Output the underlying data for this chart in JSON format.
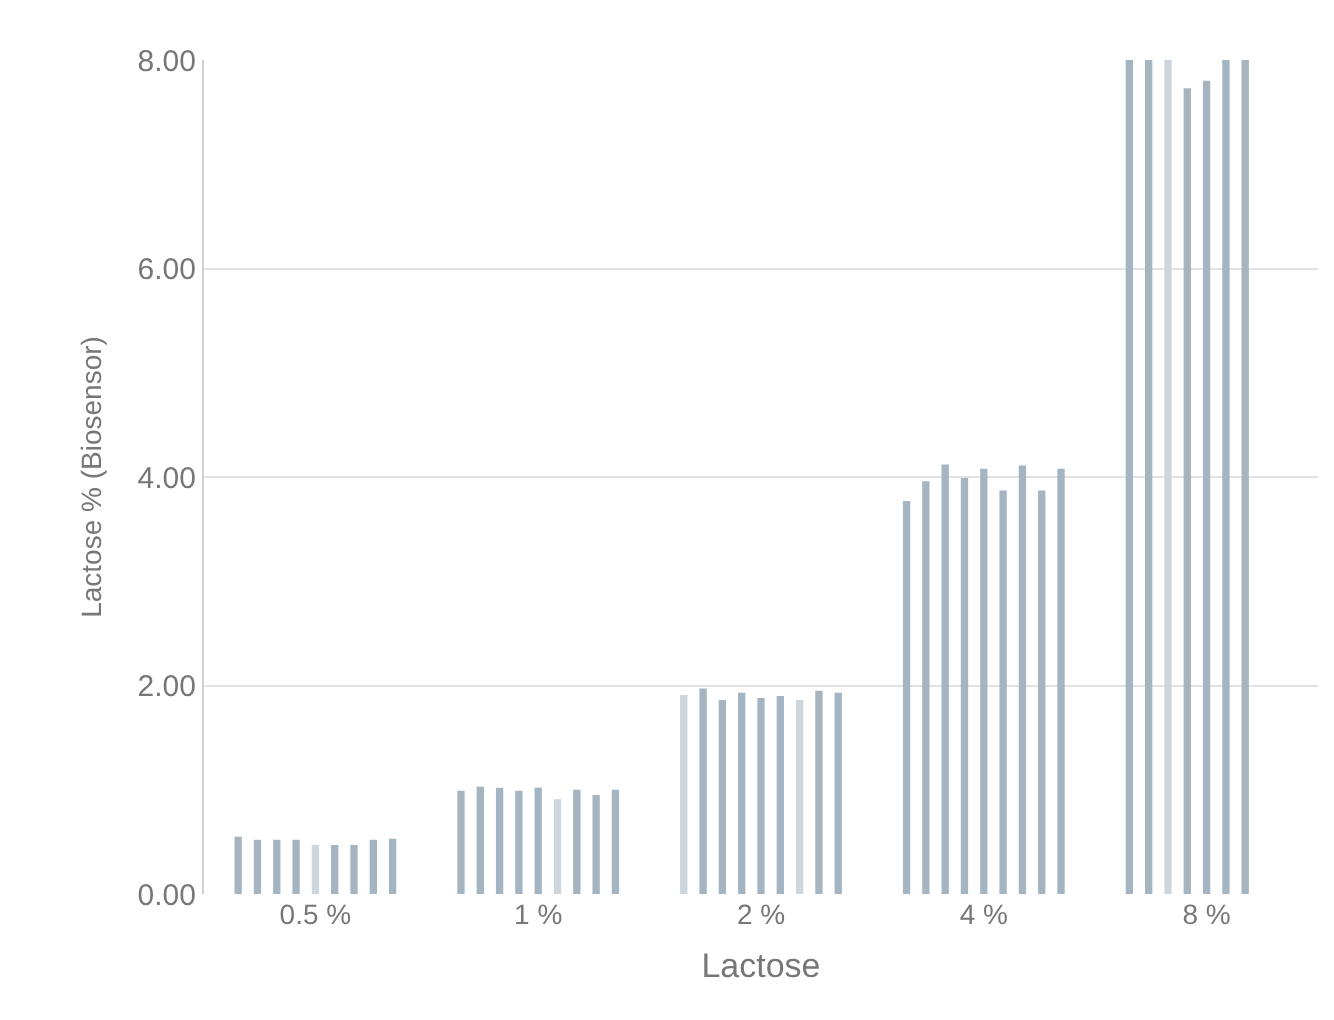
{
  "chart_data": {
    "type": "bar",
    "xlabel": "Lactose",
    "ylabel": "Lactose % (Biosensor)",
    "categories": [
      "0.5 %",
      "1 %",
      "2 %",
      "4 %",
      "8 %"
    ],
    "ylim": [
      0,
      8
    ],
    "yticks": [
      {
        "value": 0,
        "label": "0.00"
      },
      {
        "value": 2,
        "label": "2.00"
      },
      {
        "value": 4,
        "label": "4.00"
      },
      {
        "value": 6,
        "label": "6.00"
      },
      {
        "value": 8,
        "label": "8.00"
      }
    ],
    "grid": "y",
    "series": [
      {
        "color": "#a4b5c1",
        "colors": [
          null,
          null,
          "#cdd6dd",
          null,
          null
        ],
        "values": [
          0.55,
          0.99,
          1.91,
          3.77,
          8
        ]
      },
      {
        "color": "#a4b5c1",
        "values": [
          0.52,
          1.03,
          1.97,
          3.96,
          8
        ]
      },
      {
        "color": "#a4b5c1",
        "colors": [
          null,
          null,
          null,
          null,
          "#cdd6dd"
        ],
        "values": [
          0.52,
          1.02,
          1.86,
          4.12,
          8
        ]
      },
      {
        "color": "#a4b5c1",
        "values": [
          0.52,
          0.99,
          1.93,
          3.99,
          7.73
        ]
      },
      {
        "color": "#a4b5c1",
        "colors": [
          "#cdd6dd",
          null,
          null,
          null,
          null
        ],
        "values": [
          0.47,
          1.02,
          1.88,
          4.08,
          7.8
        ]
      },
      {
        "color": "#a4b5c1",
        "colors": [
          null,
          "#cdd6dd",
          null,
          null,
          null
        ],
        "values": [
          0.47,
          0.91,
          1.9,
          3.87,
          8
        ]
      },
      {
        "color": "#a4b5c1",
        "colors": [
          null,
          null,
          "#cdd6dd",
          null,
          null
        ],
        "values": [
          0.47,
          1.0,
          1.86,
          4.11,
          8
        ]
      },
      {
        "color": "#a4b5c1",
        "values": [
          0.52,
          0.95,
          1.95,
          3.87,
          null
        ]
      },
      {
        "color": "#a4b5c1",
        "values": [
          0.53,
          1.0,
          1.93,
          4.08,
          null
        ]
      }
    ]
  }
}
